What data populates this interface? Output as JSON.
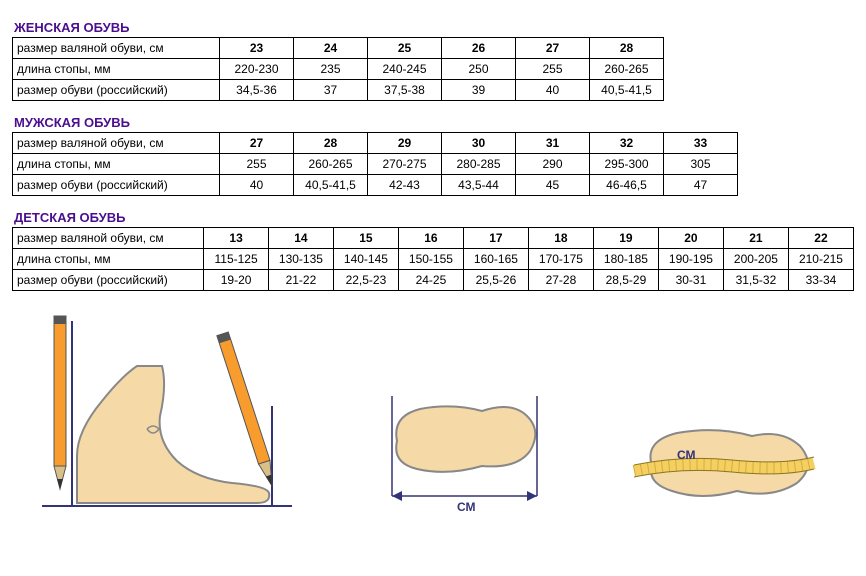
{
  "colors": {
    "heading": "#4b0e8f",
    "border": "#000000",
    "foot_fill": "#f5d9a7",
    "foot_stroke": "#888888",
    "pencil_body": "#f79c2d",
    "pencil_tip": "#d9c089",
    "pencil_lead": "#333333",
    "pencil_top": "#555555",
    "arrow": "#333377",
    "tape": "#f5cf5f"
  },
  "col_widths": {
    "women": 65,
    "men": 65,
    "kids": 62
  },
  "tables": [
    {
      "title": "ЖЕНСКАЯ ОБУВЬ",
      "key": "women",
      "rows": [
        {
          "label": "размер валяной обуви, см",
          "header": true,
          "cells": [
            "23",
            "24",
            "25",
            "26",
            "27",
            "28"
          ]
        },
        {
          "label": "длина стопы, мм",
          "cells": [
            "220-230",
            "235",
            "240-245",
            "250",
            "255",
            "260-265"
          ]
        },
        {
          "label": "размер обуви (российский)",
          "cells": [
            "34,5-36",
            "37",
            "37,5-38",
            "39",
            "40",
            "40,5-41,5"
          ]
        }
      ]
    },
    {
      "title": "МУЖСКАЯ ОБУВЬ",
      "key": "men",
      "rows": [
        {
          "label": "размер валяной обуви, см",
          "header": true,
          "cells": [
            "27",
            "28",
            "29",
            "30",
            "31",
            "32",
            "33"
          ]
        },
        {
          "label": "длина стопы, мм",
          "cells": [
            "255",
            "260-265",
            "270-275",
            "280-285",
            "290",
            "295-300",
            "305"
          ]
        },
        {
          "label": "размер обуви (российский)",
          "cells": [
            "40",
            "40,5-41,5",
            "42-43",
            "43,5-44",
            "45",
            "46-46,5",
            "47"
          ]
        }
      ]
    },
    {
      "title": "ДЕТСКАЯ ОБУВЬ",
      "key": "kids",
      "rows": [
        {
          "label": "размер валяной обуви, см",
          "header": true,
          "cells": [
            "13",
            "14",
            "15",
            "16",
            "17",
            "18",
            "19",
            "20",
            "21",
            "22"
          ]
        },
        {
          "label": "длина стопы, мм",
          "cells": [
            "115-125",
            "130-135",
            "140-145",
            "150-155",
            "160-165",
            "170-175",
            "180-185",
            "190-195",
            "200-205",
            "210-215"
          ]
        },
        {
          "label": "размер обуви (российский)",
          "cells": [
            "19-20",
            "21-22",
            "22,5-23",
            "24-25",
            "25,5-26",
            "27-28",
            "28,5-29",
            "30-31",
            "31,5-32",
            "33-34"
          ]
        }
      ]
    }
  ],
  "labels": {
    "cm": "СМ"
  }
}
